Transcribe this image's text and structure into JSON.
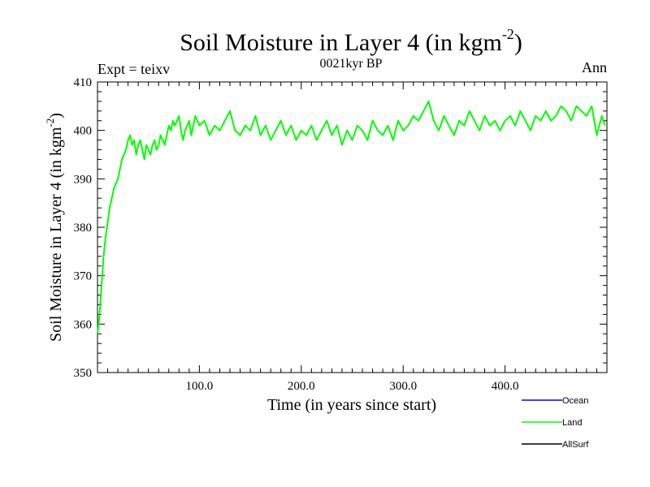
{
  "chart_data": {
    "type": "line",
    "title_main": "Soil Moisture in Layer 4 (in kgm",
    "title_sup": "-2",
    "title_close": ")",
    "subtitle": "0021kyr BP",
    "left_label": "Expt = teixv",
    "right_label": "Ann",
    "xlabel": "Time (in years since start)",
    "ylabel_main": "Soil Moisture in Layer 4 (in kgm",
    "ylabel_sup": "-2",
    "ylabel_close": ")",
    "xlim": [
      0,
      500
    ],
    "ylim": [
      350,
      410
    ],
    "x_ticks": [
      {
        "value": 100,
        "label": "100.0"
      },
      {
        "value": 200,
        "label": "200.0"
      },
      {
        "value": 300,
        "label": "300.0"
      },
      {
        "value": 400,
        "label": "400.0"
      }
    ],
    "y_ticks": [
      {
        "value": 350,
        "label": "350"
      },
      {
        "value": 360,
        "label": "360"
      },
      {
        "value": 370,
        "label": "370"
      },
      {
        "value": 380,
        "label": "380"
      },
      {
        "value": 390,
        "label": "390"
      },
      {
        "value": 400,
        "label": "400"
      },
      {
        "value": 410,
        "label": "410"
      }
    ],
    "grid": false,
    "legend_position": "bottom-right, below plot",
    "legend": [
      {
        "name": "Ocean",
        "color": "#0000ff"
      },
      {
        "name": "Land",
        "color": "#00ff00"
      },
      {
        "name": "AllSurf",
        "color": "#000000"
      }
    ],
    "series": [
      {
        "name": "Land",
        "color": "#00ff00",
        "points": [
          [
            0,
            358
          ],
          [
            2,
            362
          ],
          [
            4,
            368
          ],
          [
            6,
            374
          ],
          [
            8,
            378
          ],
          [
            10,
            381
          ],
          [
            12,
            384
          ],
          [
            14,
            386
          ],
          [
            16,
            388
          ],
          [
            18,
            389
          ],
          [
            20,
            390
          ],
          [
            22,
            392
          ],
          [
            24,
            394
          ],
          [
            26,
            395
          ],
          [
            28,
            396
          ],
          [
            30,
            398
          ],
          [
            32,
            399
          ],
          [
            34,
            397
          ],
          [
            36,
            398
          ],
          [
            38,
            395
          ],
          [
            40,
            397
          ],
          [
            42,
            398
          ],
          [
            44,
            396
          ],
          [
            46,
            394
          ],
          [
            48,
            397
          ],
          [
            50,
            396
          ],
          [
            52,
            395
          ],
          [
            54,
            397
          ],
          [
            56,
            398
          ],
          [
            58,
            396
          ],
          [
            60,
            397
          ],
          [
            62,
            399
          ],
          [
            64,
            398
          ],
          [
            66,
            397
          ],
          [
            68,
            399
          ],
          [
            70,
            401
          ],
          [
            72,
            400
          ],
          [
            74,
            402
          ],
          [
            76,
            401
          ],
          [
            78,
            402
          ],
          [
            80,
            403
          ],
          [
            82,
            400
          ],
          [
            84,
            398
          ],
          [
            86,
            400
          ],
          [
            88,
            401
          ],
          [
            90,
            402
          ],
          [
            92,
            399
          ],
          [
            94,
            401
          ],
          [
            96,
            403
          ],
          [
            98,
            402
          ],
          [
            100,
            401
          ],
          [
            105,
            402
          ],
          [
            110,
            399
          ],
          [
            115,
            401
          ],
          [
            120,
            400
          ],
          [
            125,
            402
          ],
          [
            130,
            404
          ],
          [
            135,
            400
          ],
          [
            140,
            399
          ],
          [
            145,
            401
          ],
          [
            150,
            400
          ],
          [
            155,
            403
          ],
          [
            160,
            399
          ],
          [
            165,
            401
          ],
          [
            170,
            398
          ],
          [
            175,
            400
          ],
          [
            180,
            402
          ],
          [
            185,
            399
          ],
          [
            190,
            401
          ],
          [
            195,
            398
          ],
          [
            200,
            400
          ],
          [
            205,
            399
          ],
          [
            210,
            401
          ],
          [
            215,
            398
          ],
          [
            220,
            400
          ],
          [
            225,
            402
          ],
          [
            230,
            399
          ],
          [
            235,
            401
          ],
          [
            240,
            397
          ],
          [
            245,
            400
          ],
          [
            250,
            398
          ],
          [
            255,
            401
          ],
          [
            260,
            400
          ],
          [
            265,
            398
          ],
          [
            270,
            402
          ],
          [
            275,
            400
          ],
          [
            280,
            399
          ],
          [
            285,
            401
          ],
          [
            290,
            398
          ],
          [
            295,
            402
          ],
          [
            300,
            400
          ],
          [
            305,
            401
          ],
          [
            310,
            403
          ],
          [
            315,
            402
          ],
          [
            320,
            404
          ],
          [
            325,
            406
          ],
          [
            330,
            402
          ],
          [
            335,
            400
          ],
          [
            340,
            403
          ],
          [
            345,
            401
          ],
          [
            350,
            399
          ],
          [
            355,
            402
          ],
          [
            360,
            401
          ],
          [
            365,
            404
          ],
          [
            370,
            402
          ],
          [
            375,
            400
          ],
          [
            380,
            403
          ],
          [
            385,
            401
          ],
          [
            390,
            402
          ],
          [
            395,
            400
          ],
          [
            400,
            402
          ],
          [
            405,
            403
          ],
          [
            410,
            401
          ],
          [
            415,
            404
          ],
          [
            420,
            402
          ],
          [
            425,
            400
          ],
          [
            430,
            403
          ],
          [
            435,
            402
          ],
          [
            440,
            404
          ],
          [
            445,
            402
          ],
          [
            450,
            403
          ],
          [
            455,
            405
          ],
          [
            460,
            404
          ],
          [
            465,
            402
          ],
          [
            470,
            405
          ],
          [
            475,
            404
          ],
          [
            480,
            403
          ],
          [
            485,
            405
          ],
          [
            490,
            399
          ],
          [
            495,
            403
          ],
          [
            498,
            401
          ]
        ]
      }
    ]
  }
}
